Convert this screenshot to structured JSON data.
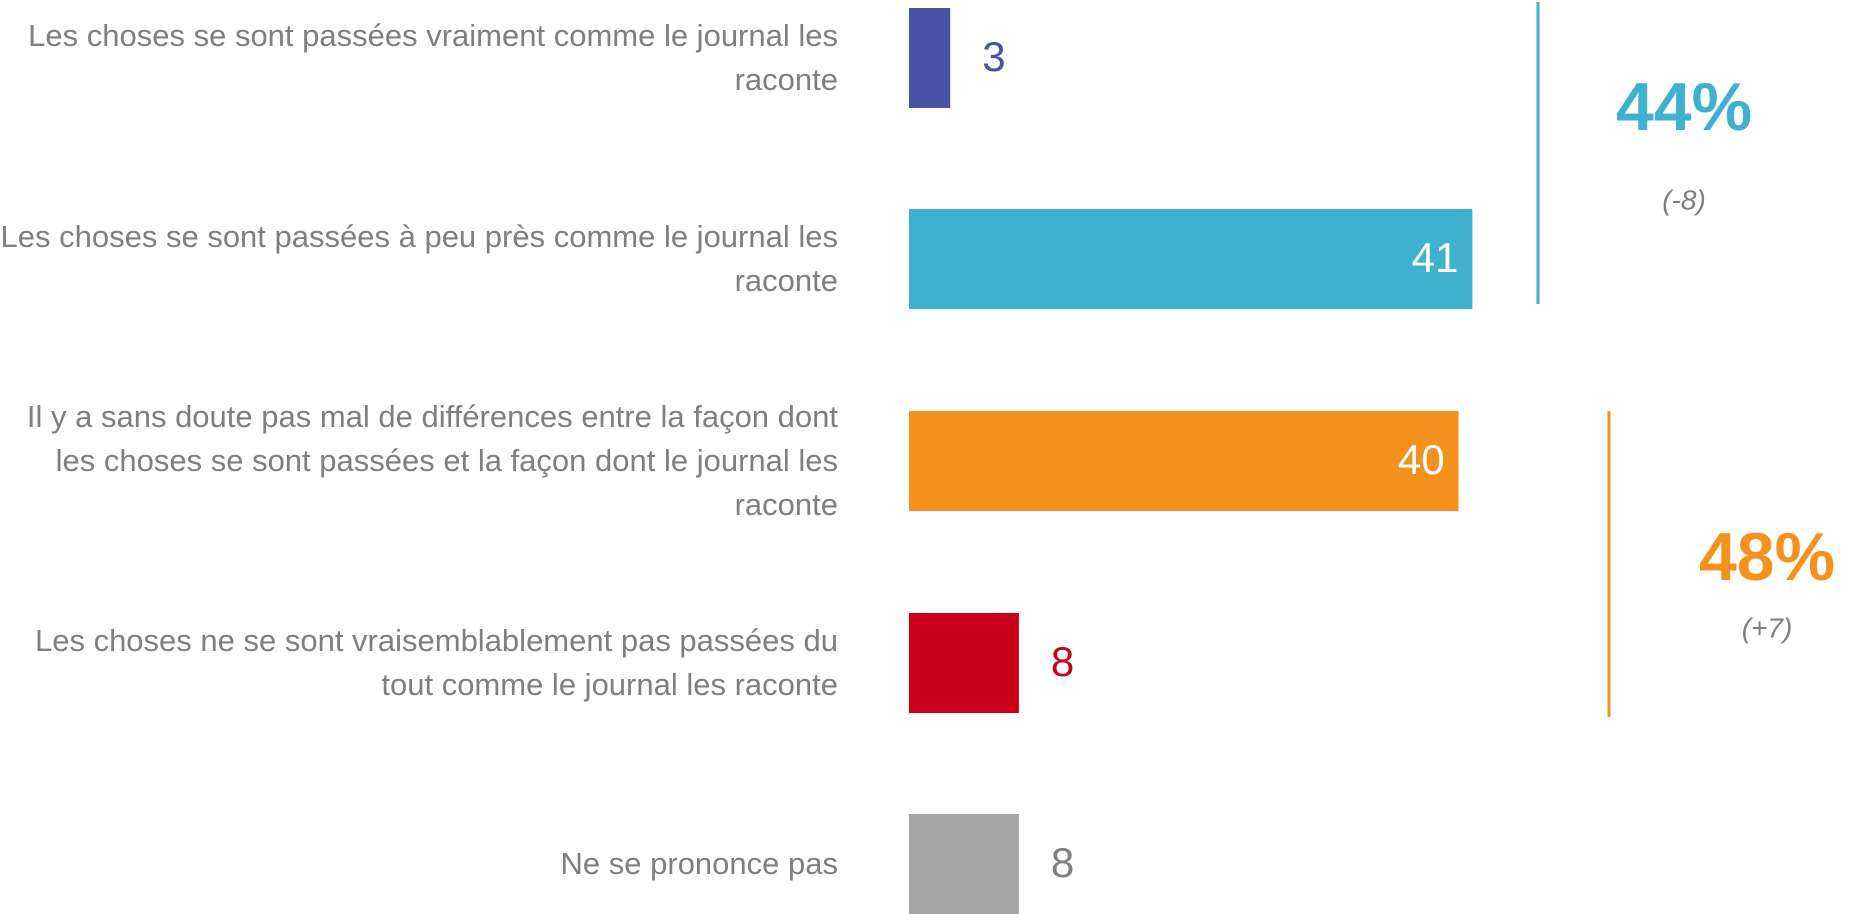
{
  "chart_data": {
    "type": "bar",
    "orientation": "horizontal",
    "categories": [
      "Les choses se sont passées vraiment comme le journal les raconte",
      "Les choses se sont passées à peu près comme le journal les raconte",
      "Il y a sans doute pas mal de différences entre la façon dont les choses se sont passées et la façon dont le journal les raconte",
      "Les choses ne se sont vraisemblablement pas passées du tout comme le journal les raconte",
      "Ne se prononce pas"
    ],
    "values": [
      3,
      41,
      40,
      8,
      8
    ],
    "colors": [
      "#4a52a5",
      "#3eb1ce",
      "#f5921e",
      "#c8001a",
      "#a6a6a6"
    ],
    "groups": [
      {
        "label": "44%",
        "change": "(-8)",
        "color": "#3eb1ce"
      },
      {
        "label": "48%",
        "change": "(+7)",
        "color": "#f5921e"
      }
    ]
  }
}
